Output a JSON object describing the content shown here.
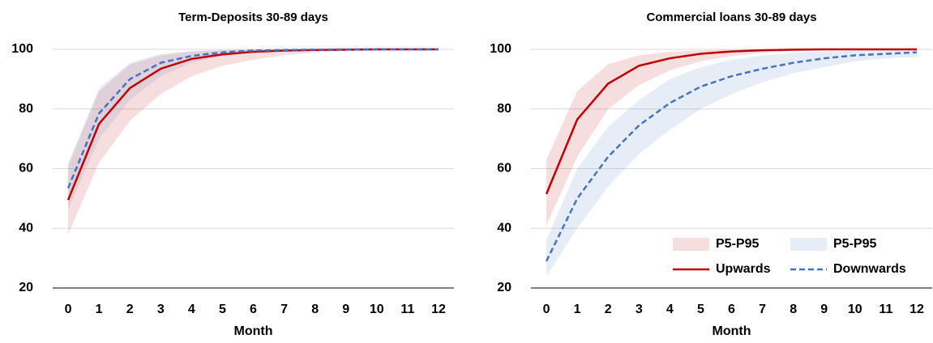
{
  "chart_data": [
    {
      "type": "line",
      "title": "Term-Deposits 30-89 days",
      "x_label": "Month",
      "x": [
        0,
        1,
        2,
        3,
        4,
        5,
        6,
        7,
        8,
        9,
        10,
        11,
        12
      ],
      "xlim": [
        -0.5,
        12.5
      ],
      "xticks": [
        0,
        1,
        2,
        3,
        4,
        5,
        6,
        7,
        8,
        9,
        10,
        11,
        12
      ],
      "ylim": [
        20,
        100
      ],
      "yticks": [
        20,
        40,
        60,
        80,
        100
      ],
      "grid": true,
      "series": [
        {
          "kind": "band",
          "color": "#c00000",
          "lower": [
            38,
            62,
            76,
            85,
            91,
            94.5,
            96.5,
            98,
            99,
            99.5,
            99.8,
            99.9,
            100
          ],
          "upper": [
            61,
            86,
            95,
            98,
            99.3,
            99.7,
            99.9,
            100,
            100,
            100,
            100,
            100,
            100
          ]
        },
        {
          "kind": "band",
          "color": "#4472c4",
          "lower": [
            46,
            70,
            83,
            91,
            95.5,
            97.8,
            99,
            99.5,
            99.8,
            99.9,
            100,
            100,
            100
          ],
          "upper": [
            62,
            87,
            95.5,
            98.5,
            99.5,
            99.8,
            100,
            100,
            100,
            100,
            100,
            100,
            100
          ]
        },
        {
          "kind": "line",
          "color": "#c00000",
          "dashed": false,
          "values": [
            49.5,
            75,
            87,
            93.5,
            96.8,
            98.3,
            99.2,
            99.6,
            99.8,
            99.9,
            100,
            100,
            100
          ]
        },
        {
          "kind": "line",
          "color": "#4472c4",
          "dashed": true,
          "values": [
            53.5,
            78.5,
            90,
            95.5,
            97.8,
            99,
            99.6,
            99.8,
            99.9,
            100,
            100,
            100,
            100
          ]
        }
      ]
    },
    {
      "type": "line",
      "title": "Commercial loans 30-89 days",
      "x_label": "Month",
      "x": [
        0,
        1,
        2,
        3,
        4,
        5,
        6,
        7,
        8,
        9,
        10,
        11,
        12
      ],
      "xlim": [
        -0.5,
        12.5
      ],
      "xticks": [
        0,
        1,
        2,
        3,
        4,
        5,
        6,
        7,
        8,
        9,
        10,
        11,
        12
      ],
      "ylim": [
        20,
        100
      ],
      "yticks": [
        20,
        40,
        60,
        80,
        100
      ],
      "grid": true,
      "legend": "lower right",
      "series": [
        {
          "kind": "band",
          "name": "P5-P95",
          "color": "#c00000",
          "lower": [
            41,
            64,
            80,
            88,
            93,
            96,
            97.8,
            98.8,
            99.4,
            99.7,
            99.9,
            100,
            100
          ],
          "upper": [
            63,
            86,
            95,
            98,
            99.2,
            99.7,
            99.9,
            100,
            100,
            100,
            100,
            100,
            100
          ]
        },
        {
          "kind": "band",
          "name": "P5-P95",
          "color": "#4472c4",
          "lower": [
            24,
            40,
            54,
            65,
            73,
            80,
            85,
            89,
            92,
            94,
            96,
            97,
            97.5
          ],
          "upper": [
            36,
            60,
            74,
            83,
            90,
            94,
            96.5,
            98,
            98.8,
            99.3,
            99.6,
            99.8,
            99.9
          ]
        },
        {
          "kind": "line",
          "name": "Upwards",
          "color": "#c00000",
          "dashed": false,
          "values": [
            51.5,
            76.5,
            88.5,
            94.5,
            97,
            98.5,
            99.3,
            99.7,
            99.9,
            100,
            100,
            100,
            100
          ]
        },
        {
          "kind": "line",
          "name": "Downwards",
          "color": "#4472c4",
          "dashed": true,
          "values": [
            29,
            50,
            64,
            74.5,
            82,
            87.5,
            91,
            93.5,
            95.5,
            97,
            98,
            98.5,
            99
          ]
        }
      ]
    }
  ]
}
